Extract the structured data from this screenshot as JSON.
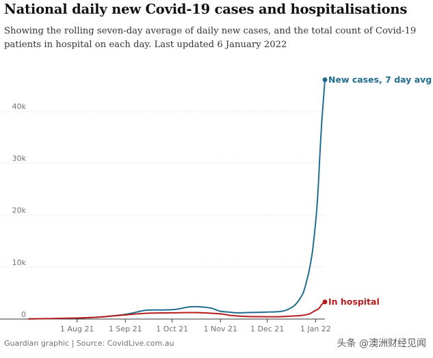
{
  "chart_data": {
    "type": "line",
    "title": "National daily new Covid-19 cases and hospitalisations",
    "subtitle": "Showing the rolling seven-day average of daily new cases, and the total count of Covid-19 patients in hospital on each day. Last updated 6 January 2022",
    "xlabel": "",
    "ylabel": "",
    "x_ticks": [
      {
        "label": "1 Aug 21",
        "day": 31
      },
      {
        "label": "1 Sep 21",
        "day": 62
      },
      {
        "label": "1 Oct 21",
        "day": 92
      },
      {
        "label": "1 Nov 21",
        "day": 123
      },
      {
        "label": "1 Dec 21",
        "day": 153
      },
      {
        "label": "1 Jan 22",
        "day": 184
      }
    ],
    "y_ticks": [
      {
        "label": "0",
        "value": 0
      },
      {
        "label": "10k",
        "value": 10000
      },
      {
        "label": "20k",
        "value": 20000
      },
      {
        "label": "30k",
        "value": 30000
      },
      {
        "label": "40k",
        "value": 40000
      }
    ],
    "xlim": [
      0,
      190
    ],
    "ylim": [
      0,
      46500
    ],
    "x_unit": "days since 1 July 2021",
    "series": [
      {
        "name": "New cases, 7 day avg",
        "label": "New cases, 7 day avg",
        "color": "#1f6c8f",
        "points": [
          [
            0,
            30
          ],
          [
            10,
            60
          ],
          [
            20,
            100
          ],
          [
            31,
            180
          ],
          [
            40,
            300
          ],
          [
            50,
            500
          ],
          [
            62,
            900
          ],
          [
            70,
            1400
          ],
          [
            75,
            1700
          ],
          [
            80,
            1750
          ],
          [
            85,
            1750
          ],
          [
            92,
            1800
          ],
          [
            97,
            2000
          ],
          [
            102,
            2300
          ],
          [
            107,
            2400
          ],
          [
            112,
            2300
          ],
          [
            117,
            2100
          ],
          [
            120,
            1800
          ],
          [
            123,
            1500
          ],
          [
            128,
            1350
          ],
          [
            133,
            1200
          ],
          [
            140,
            1250
          ],
          [
            148,
            1300
          ],
          [
            153,
            1350
          ],
          [
            160,
            1400
          ],
          [
            165,
            1700
          ],
          [
            170,
            2500
          ],
          [
            173,
            3500
          ],
          [
            176,
            5000
          ],
          [
            178,
            7000
          ],
          [
            180,
            9500
          ],
          [
            182,
            13000
          ],
          [
            184,
            18500
          ],
          [
            185,
            22000
          ],
          [
            186,
            27000
          ],
          [
            187,
            33000
          ],
          [
            188,
            38000
          ],
          [
            189,
            42000
          ],
          [
            190,
            46000
          ]
        ]
      },
      {
        "name": "In hospital",
        "label": "In hospital",
        "color": "#b51c1c",
        "points": [
          [
            0,
            40
          ],
          [
            15,
            100
          ],
          [
            31,
            200
          ],
          [
            45,
            380
          ],
          [
            62,
            800
          ],
          [
            75,
            1100
          ],
          [
            92,
            1200
          ],
          [
            105,
            1250
          ],
          [
            115,
            1150
          ],
          [
            123,
            1000
          ],
          [
            130,
            700
          ],
          [
            140,
            500
          ],
          [
            153,
            450
          ],
          [
            160,
            450
          ],
          [
            168,
            550
          ],
          [
            175,
            700
          ],
          [
            180,
            1000
          ],
          [
            183,
            1500
          ],
          [
            186,
            2000
          ],
          [
            188,
            2800
          ],
          [
            190,
            3300
          ]
        ]
      }
    ]
  },
  "footer": {
    "source": "Guardian graphic | Source: CovidLive.com.au",
    "watermark": "头条 @澳洲财经见闻"
  }
}
